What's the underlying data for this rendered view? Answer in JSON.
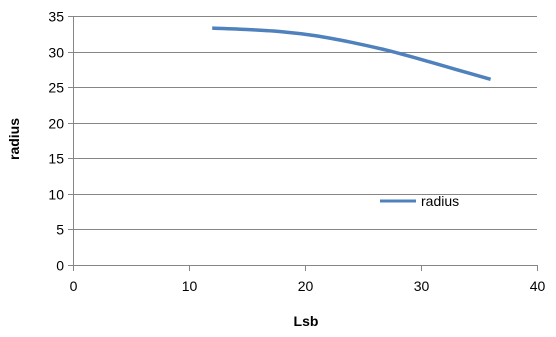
{
  "chart_data": {
    "type": "line",
    "title": "",
    "xlabel": "Lsb",
    "ylabel": "radius",
    "xlim": [
      0,
      40
    ],
    "ylim": [
      0,
      35
    ],
    "xticks": [
      0,
      10,
      20,
      30,
      40
    ],
    "yticks": [
      0,
      5,
      10,
      15,
      20,
      25,
      30,
      35
    ],
    "x_tick_labels": [
      "0",
      "10",
      "20",
      "30",
      "40"
    ],
    "y_tick_labels": [
      "0",
      "5",
      "10",
      "15",
      "20",
      "25",
      "30",
      "35"
    ],
    "grid": "horizontal",
    "legend": "right",
    "series": [
      {
        "name": "radius",
        "color": "#4f81bd",
        "x": [
          12,
          15,
          18,
          21,
          24,
          27,
          30,
          33,
          36
        ],
        "y": [
          33.3,
          33.1,
          32.8,
          32.2,
          31.3,
          30.2,
          28.9,
          27.5,
          26.1
        ]
      }
    ]
  }
}
